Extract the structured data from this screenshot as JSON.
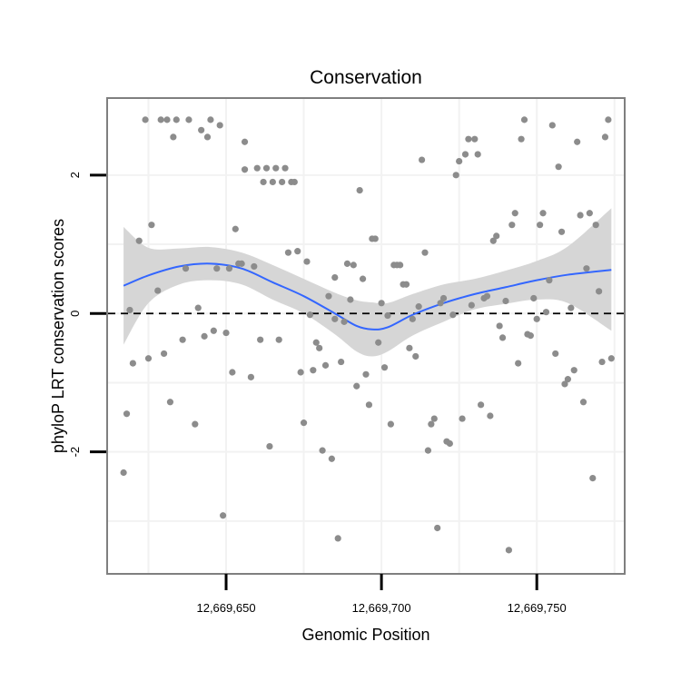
{
  "chart_data": {
    "type": "scatter",
    "title": "Conservation",
    "xlabel": "Genomic Position",
    "ylabel": "phyloP LRT conservation scores",
    "xlim": [
      12669612,
      12669778
    ],
    "ylim": [
      -3.75,
      3.1
    ],
    "x_ticks": [
      {
        "value": 12669650,
        "label": "12,669,650"
      },
      {
        "value": 12669700,
        "label": "12,669,700"
      },
      {
        "value": 12669750,
        "label": "12,669,750"
      }
    ],
    "y_ticks": [
      {
        "value": 2,
        "label": "2"
      },
      {
        "value": 0,
        "label": "0"
      },
      {
        "value": -2,
        "label": "-2"
      }
    ],
    "grid": true,
    "reference_line": {
      "y": 0,
      "style": "dashed"
    },
    "colors": {
      "points": "#8c8c8c",
      "smooth_line": "#3366ff",
      "confidence_band": "#d4d4d4",
      "grid": "#f2f2f2",
      "frame": "#7f7f7f"
    },
    "points": [
      [
        12669617,
        -2.3
      ],
      [
        12669618,
        -1.45
      ],
      [
        12669619,
        0.05
      ],
      [
        12669620,
        -0.72
      ],
      [
        12669622,
        1.05
      ],
      [
        12669624,
        2.8
      ],
      [
        12669625,
        -0.65
      ],
      [
        12669626,
        1.28
      ],
      [
        12669628,
        0.33
      ],
      [
        12669629,
        2.8
      ],
      [
        12669630,
        -0.58
      ],
      [
        12669631,
        2.8
      ],
      [
        12669632,
        -1.28
      ],
      [
        12669633,
        2.55
      ],
      [
        12669634,
        2.8
      ],
      [
        12669636,
        -0.38
      ],
      [
        12669637,
        0.65
      ],
      [
        12669638,
        2.8
      ],
      [
        12669640,
        -1.6
      ],
      [
        12669641,
        0.08
      ],
      [
        12669642,
        2.65
      ],
      [
        12669643,
        -0.33
      ],
      [
        12669644,
        2.55
      ],
      [
        12669645,
        2.8
      ],
      [
        12669646,
        -0.25
      ],
      [
        12669647,
        0.65
      ],
      [
        12669648,
        2.72
      ],
      [
        12669649,
        -2.92
      ],
      [
        12669650,
        -0.28
      ],
      [
        12669651,
        0.65
      ],
      [
        12669652,
        -0.85
      ],
      [
        12669653,
        1.22
      ],
      [
        12669654,
        0.72
      ],
      [
        12669655,
        0.72
      ],
      [
        12669656,
        2.48
      ],
      [
        12669656,
        2.08
      ],
      [
        12669658,
        -0.92
      ],
      [
        12669659,
        0.68
      ],
      [
        12669660,
        2.1
      ],
      [
        12669661,
        -0.38
      ],
      [
        12669662,
        1.9
      ],
      [
        12669663,
        2.1
      ],
      [
        12669664,
        -1.92
      ],
      [
        12669665,
        1.9
      ],
      [
        12669666,
        2.1
      ],
      [
        12669667,
        -0.38
      ],
      [
        12669668,
        1.9
      ],
      [
        12669669,
        2.1
      ],
      [
        12669670,
        0.88
      ],
      [
        12669671,
        1.9
      ],
      [
        12669672,
        1.9
      ],
      [
        12669673,
        0.9
      ],
      [
        12669674,
        -0.85
      ],
      [
        12669675,
        -1.58
      ],
      [
        12669676,
        0.75
      ],
      [
        12669677,
        -0.02
      ],
      [
        12669678,
        -0.82
      ],
      [
        12669679,
        -0.42
      ],
      [
        12669680,
        -0.5
      ],
      [
        12669681,
        -1.98
      ],
      [
        12669682,
        -0.75
      ],
      [
        12669683,
        0.25
      ],
      [
        12669684,
        -2.1
      ],
      [
        12669685,
        0.52
      ],
      [
        12669685,
        -0.08
      ],
      [
        12669686,
        -3.25
      ],
      [
        12669687,
        -0.7
      ],
      [
        12669688,
        -0.12
      ],
      [
        12669689,
        0.72
      ],
      [
        12669690,
        0.2
      ],
      [
        12669691,
        0.7
      ],
      [
        12669692,
        -1.05
      ],
      [
        12669693,
        1.78
      ],
      [
        12669694,
        0.5
      ],
      [
        12669695,
        -0.88
      ],
      [
        12669696,
        -1.32
      ],
      [
        12669697,
        1.08
      ],
      [
        12669698,
        1.08
      ],
      [
        12669699,
        -0.42
      ],
      [
        12669700,
        0.15
      ],
      [
        12669701,
        -0.78
      ],
      [
        12669702,
        -0.03
      ],
      [
        12669703,
        -1.6
      ],
      [
        12669704,
        0.7
      ],
      [
        12669705,
        0.7
      ],
      [
        12669706,
        0.7
      ],
      [
        12669707,
        0.42
      ],
      [
        12669708,
        0.42
      ],
      [
        12669709,
        -0.5
      ],
      [
        12669710,
        -0.08
      ],
      [
        12669711,
        -0.62
      ],
      [
        12669712,
        0.1
      ],
      [
        12669713,
        2.22
      ],
      [
        12669714,
        0.88
      ],
      [
        12669715,
        -1.98
      ],
      [
        12669716,
        -1.6
      ],
      [
        12669717,
        -1.52
      ],
      [
        12669718,
        -3.1
      ],
      [
        12669719,
        0.15
      ],
      [
        12669720,
        0.22
      ],
      [
        12669721,
        -1.85
      ],
      [
        12669722,
        -1.88
      ],
      [
        12669723,
        -0.02
      ],
      [
        12669724,
        2.0
      ],
      [
        12669725,
        2.2
      ],
      [
        12669726,
        -1.52
      ],
      [
        12669727,
        2.3
      ],
      [
        12669728,
        2.52
      ],
      [
        12669729,
        0.12
      ],
      [
        12669730,
        2.52
      ],
      [
        12669731,
        2.3
      ],
      [
        12669732,
        -1.32
      ],
      [
        12669733,
        0.22
      ],
      [
        12669734,
        0.25
      ],
      [
        12669735,
        -1.48
      ],
      [
        12669736,
        1.05
      ],
      [
        12669737,
        1.12
      ],
      [
        12669738,
        -0.18
      ],
      [
        12669739,
        -0.35
      ],
      [
        12669740,
        0.18
      ],
      [
        12669741,
        -3.42
      ],
      [
        12669742,
        1.28
      ],
      [
        12669743,
        1.45
      ],
      [
        12669744,
        -0.72
      ],
      [
        12669745,
        2.52
      ],
      [
        12669746,
        2.8
      ],
      [
        12669747,
        -0.3
      ],
      [
        12669748,
        -0.32
      ],
      [
        12669749,
        0.22
      ],
      [
        12669750,
        -0.08
      ],
      [
        12669751,
        1.28
      ],
      [
        12669752,
        1.45
      ],
      [
        12669753,
        0.02
      ],
      [
        12669754,
        0.48
      ],
      [
        12669755,
        2.72
      ],
      [
        12669756,
        -0.58
      ],
      [
        12669757,
        2.12
      ],
      [
        12669758,
        1.18
      ],
      [
        12669759,
        -1.02
      ],
      [
        12669760,
        -0.95
      ],
      [
        12669761,
        0.08
      ],
      [
        12669762,
        -0.82
      ],
      [
        12669763,
        2.48
      ],
      [
        12669764,
        1.42
      ],
      [
        12669765,
        -1.28
      ],
      [
        12669766,
        0.65
      ],
      [
        12669767,
        1.45
      ],
      [
        12669768,
        -2.38
      ],
      [
        12669769,
        1.28
      ],
      [
        12669770,
        0.32
      ],
      [
        12669771,
        -0.7
      ],
      [
        12669772,
        2.55
      ],
      [
        12669773,
        2.8
      ],
      [
        12669774,
        -0.65
      ]
    ],
    "smooth": {
      "x": [
        12669617,
        12669625,
        12669635,
        12669645,
        12669655,
        12669665,
        12669675,
        12669685,
        12669692,
        12669697,
        12669702,
        12669710,
        12669720,
        12669730,
        12669740,
        12669750,
        12669760,
        12669774
      ],
      "y": [
        0.4,
        0.55,
        0.68,
        0.72,
        0.65,
        0.45,
        0.25,
        0.0,
        -0.18,
        -0.23,
        -0.2,
        -0.02,
        0.15,
        0.28,
        0.38,
        0.48,
        0.56,
        0.63
      ],
      "lower": [
        -0.45,
        0.15,
        0.42,
        0.48,
        0.42,
        0.2,
        0.0,
        -0.3,
        -0.55,
        -0.62,
        -0.55,
        -0.32,
        -0.12,
        0.06,
        0.14,
        0.2,
        0.15,
        -0.25
      ],
      "upper": [
        1.25,
        0.95,
        0.94,
        0.96,
        0.88,
        0.7,
        0.5,
        0.3,
        0.19,
        0.16,
        0.15,
        0.28,
        0.42,
        0.5,
        0.62,
        0.76,
        0.97,
        1.52
      ]
    }
  }
}
